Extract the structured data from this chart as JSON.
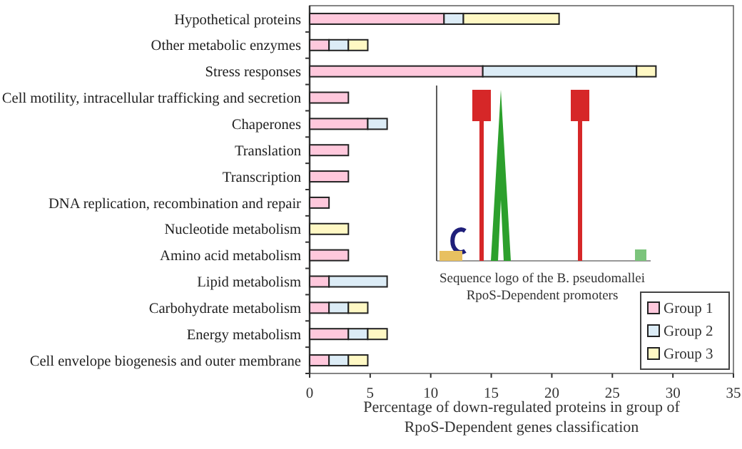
{
  "chart_data": {
    "type": "bar",
    "orientation": "horizontal",
    "stacked": true,
    "categories": [
      "Hypothetical proteins",
      "Other metabolic enzymes",
      "Stress responses",
      "Cell motility, intracellular trafficking and secretion",
      "Chaperones",
      "Translation",
      "Transcription",
      "DNA replication, recombination and repair",
      "Nucleotide metabolism",
      "Amino acid metabolism",
      "Lipid metabolism",
      "Carbohydrate metabolism",
      "Energy metabolism",
      "Cell envelope biogenesis and outer membrane"
    ],
    "series": [
      {
        "name": "Group 1",
        "color": "#ffc8dc",
        "values": [
          11.1,
          1.6,
          14.3,
          3.2,
          4.8,
          3.2,
          3.2,
          1.6,
          null,
          3.2,
          1.6,
          1.6,
          3.2,
          1.6
        ]
      },
      {
        "name": "Group 2",
        "color": "#dcecf6",
        "values": [
          1.6,
          1.6,
          12.7,
          null,
          1.6,
          null,
          null,
          null,
          null,
          null,
          4.8,
          1.6,
          1.6,
          1.6
        ]
      },
      {
        "name": "Group 3",
        "color": "#fff8c4",
        "values": [
          7.9,
          1.6,
          1.6,
          null,
          null,
          null,
          null,
          null,
          3.2,
          null,
          null,
          1.6,
          1.6,
          1.6
        ]
      }
    ],
    "xlim": [
      0,
      35
    ],
    "xticks": [
      0,
      5,
      10,
      15,
      20,
      25,
      30,
      35
    ],
    "xlabel": "Percentage of down-regulated proteins in group of RpoS-Dependent genes classification",
    "legend": "bottom right",
    "grid": false,
    "annotations": [
      "Sequence logo of the B. pseudomallei RpoS-Dependent promoters"
    ]
  }
}
